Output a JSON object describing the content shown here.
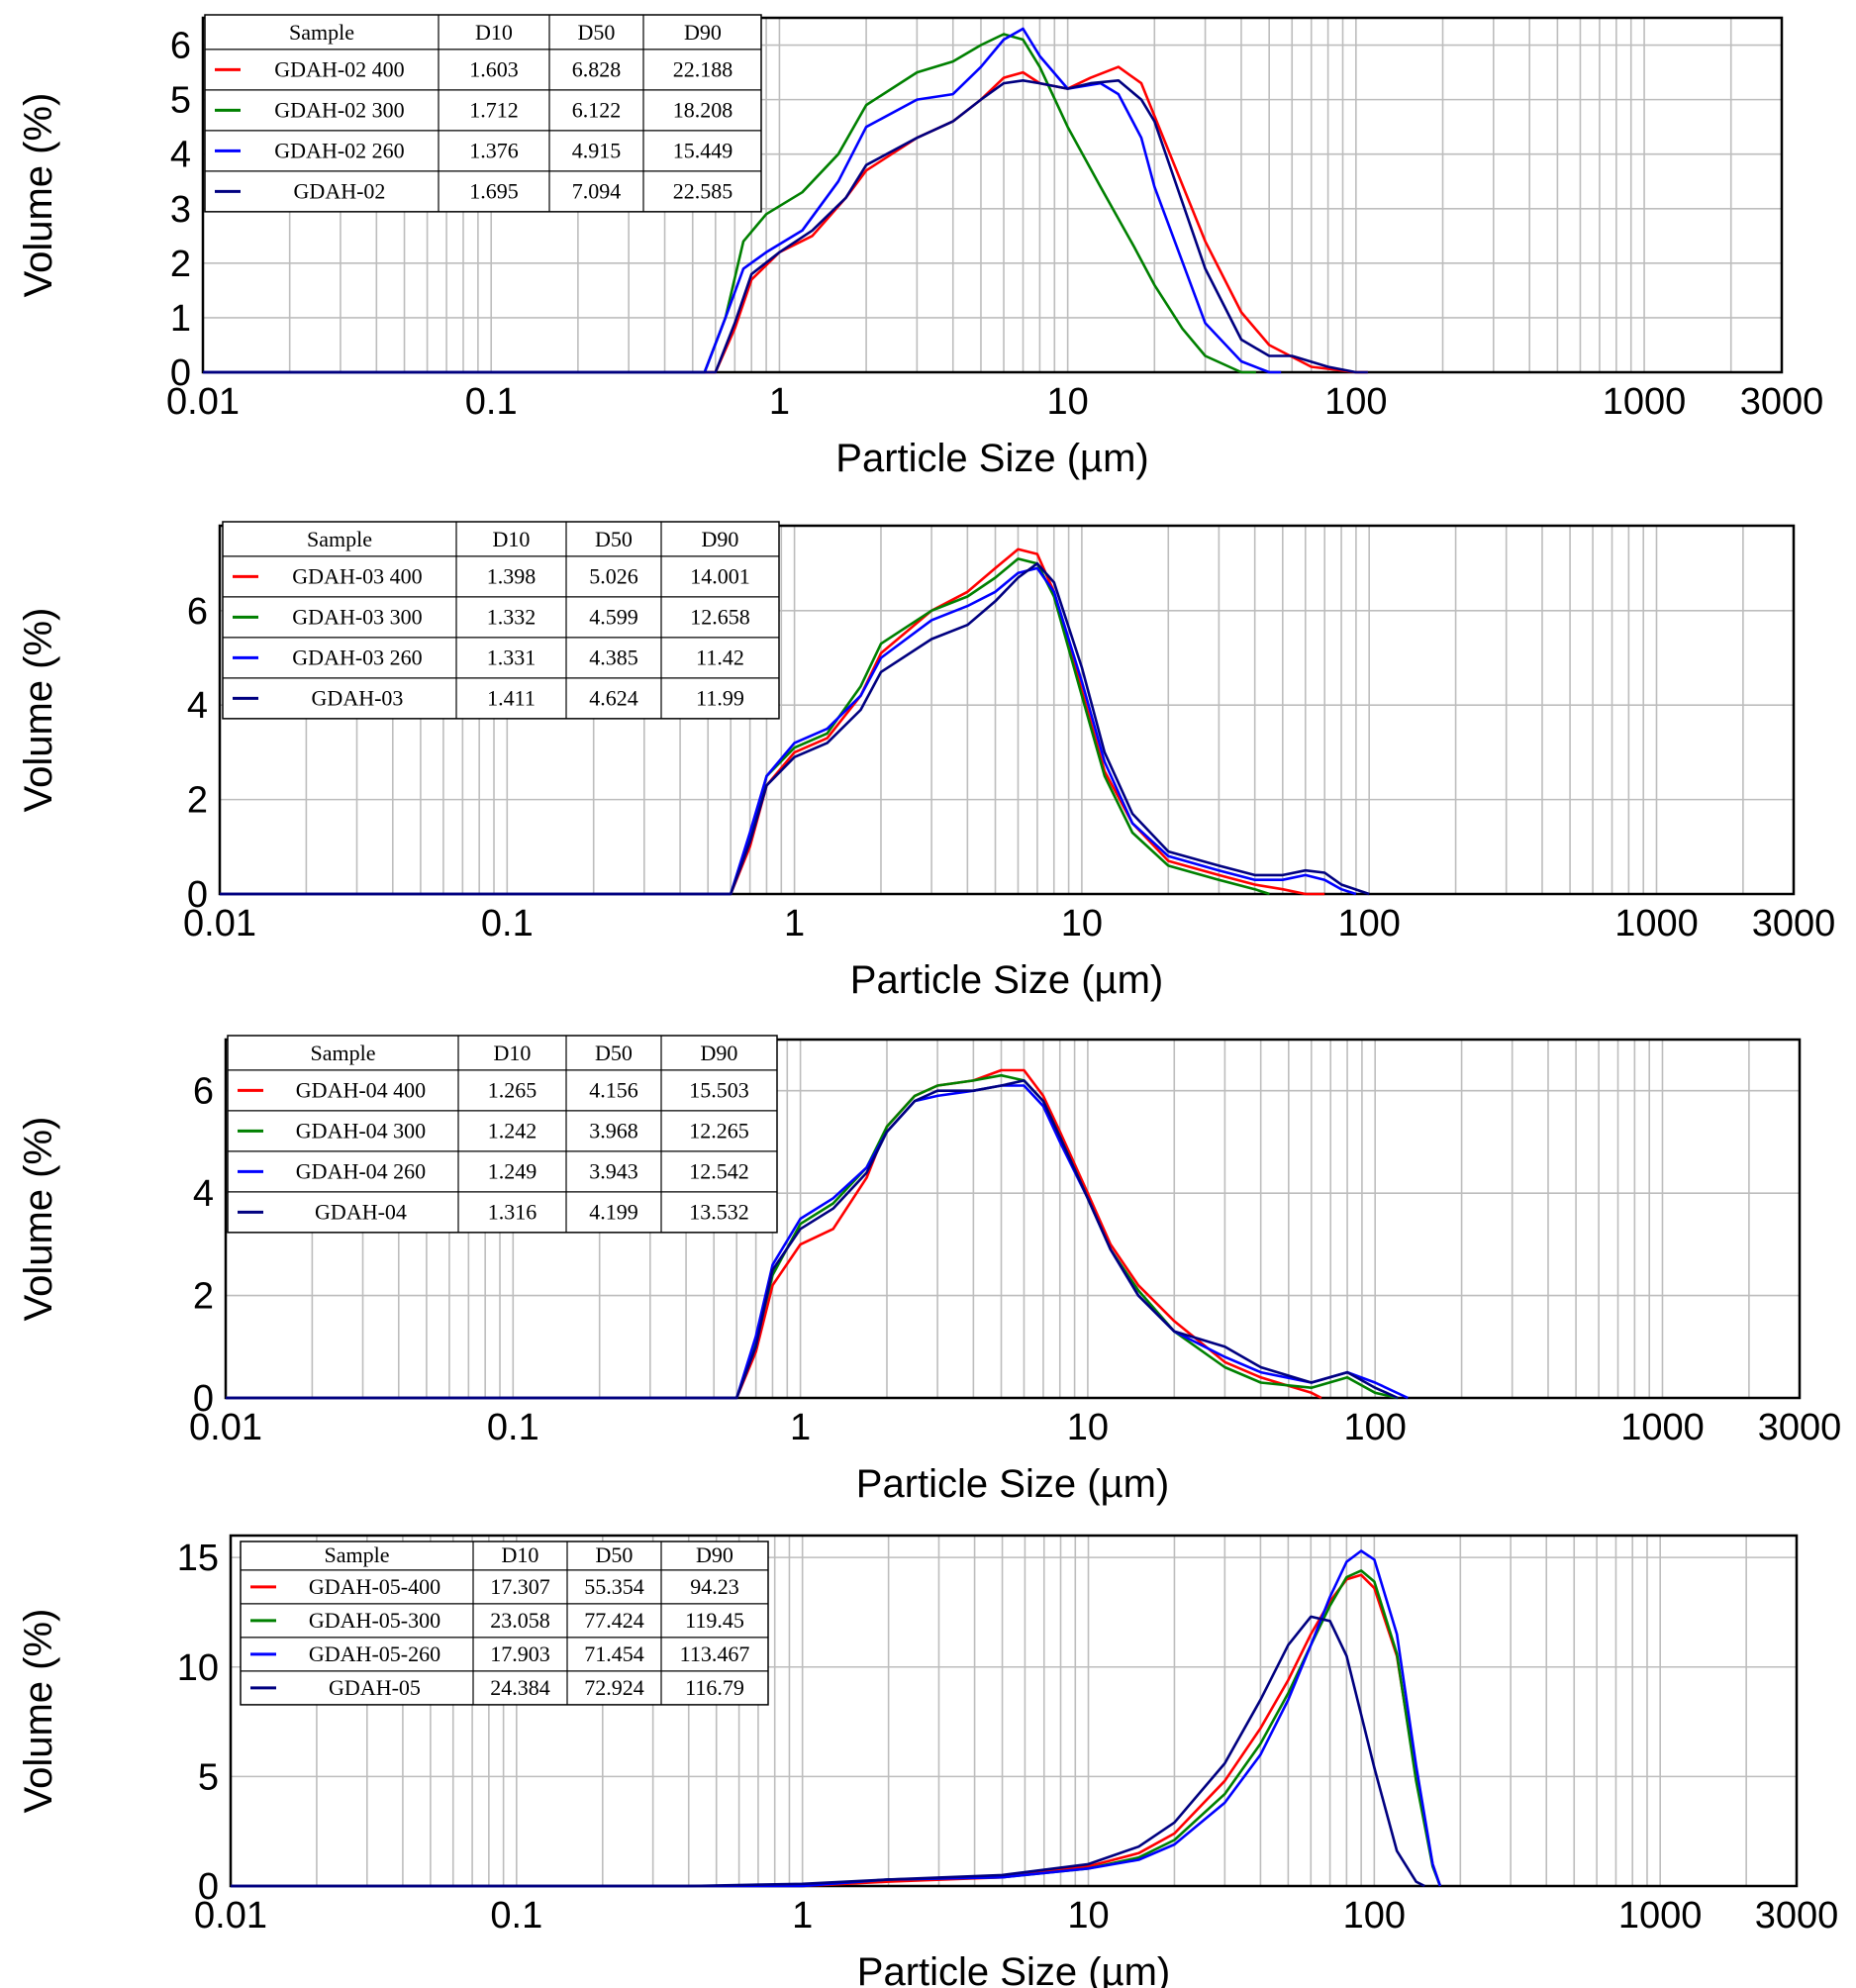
{
  "chart_data": [
    {
      "type": "line",
      "xlabel": "Particle Size (µm)",
      "ylabel": "Volume (%)",
      "xscale": "log",
      "xlim": [
        0.01,
        3000
      ],
      "ylim": [
        0,
        6.5
      ],
      "x_ticks": [
        "0.01",
        "0.1",
        "1",
        "10",
        "100",
        "1000",
        "3000"
      ],
      "y_ticks": [
        "0",
        "1",
        "2",
        "3",
        "4",
        "5",
        "6"
      ],
      "grid": true,
      "legend": {
        "position": "top-left",
        "headers": [
          "Sample",
          "D10",
          "D50",
          "D90"
        ],
        "rows": [
          {
            "sample": "GDAH-02 400",
            "d10": "1.603",
            "d50": "6.828",
            "d90": "22.188",
            "color": "#ff0000"
          },
          {
            "sample": "GDAH-02 300",
            "d10": "1.712",
            "d50": "6.122",
            "d90": "18.208",
            "color": "#008000"
          },
          {
            "sample": "GDAH-02 260",
            "d10": "1.376",
            "d50": "4.915",
            "d90": "15.449",
            "color": "#0000ff"
          },
          {
            "sample": "GDAH-02",
            "d10": "1.695",
            "d50": "7.094",
            "d90": "22.585",
            "color": "#000080"
          }
        ]
      },
      "series": [
        {
          "name": "GDAH-02 400",
          "color": "#ff0000",
          "x": [
            0.01,
            0.6,
            0.7,
            0.8,
            1,
            1.3,
            1.7,
            2,
            3,
            4,
            5,
            6,
            7,
            8,
            10,
            12,
            15,
            18,
            20,
            30,
            40,
            50,
            70,
            100,
            110
          ],
          "y": [
            0,
            0,
            0.8,
            1.7,
            2.2,
            2.5,
            3.2,
            3.7,
            4.3,
            4.6,
            5.0,
            5.4,
            5.5,
            5.3,
            5.2,
            5.4,
            5.6,
            5.3,
            4.7,
            2.4,
            1.1,
            0.5,
            0.1,
            0,
            0
          ]
        },
        {
          "name": "GDAH-02 300",
          "color": "#008000",
          "x": [
            0.01,
            0.55,
            0.65,
            0.75,
            0.9,
            1.2,
            1.6,
            2,
            3,
            4,
            5,
            6,
            7,
            8,
            10,
            13,
            17,
            20,
            25,
            30,
            40,
            45
          ],
          "y": [
            0,
            0,
            1.0,
            2.4,
            2.9,
            3.3,
            4.0,
            4.9,
            5.5,
            5.7,
            6.0,
            6.2,
            6.1,
            5.6,
            4.5,
            3.4,
            2.3,
            1.6,
            0.8,
            0.3,
            0,
            0
          ]
        },
        {
          "name": "GDAH-02 260",
          "color": "#0000ff",
          "x": [
            0.01,
            0.55,
            0.65,
            0.75,
            0.9,
            1.2,
            1.6,
            2,
            3,
            4,
            5,
            6,
            7,
            8,
            10,
            13,
            15,
            18,
            20,
            30,
            40,
            50,
            55
          ],
          "y": [
            0,
            0,
            1.0,
            1.9,
            2.2,
            2.6,
            3.5,
            4.5,
            5.0,
            5.1,
            5.6,
            6.1,
            6.3,
            5.8,
            5.2,
            5.3,
            5.1,
            4.3,
            3.4,
            0.9,
            0.2,
            0,
            0
          ]
        },
        {
          "name": "GDAH-02",
          "color": "#000080",
          "x": [
            0.01,
            0.6,
            0.7,
            0.8,
            1,
            1.3,
            1.7,
            2,
            3,
            4,
            5,
            6,
            7,
            8,
            10,
            12,
            15,
            18,
            20,
            30,
            40,
            50,
            60,
            80,
            100,
            110
          ],
          "y": [
            0,
            0,
            0.9,
            1.8,
            2.2,
            2.6,
            3.2,
            3.8,
            4.3,
            4.6,
            5.0,
            5.3,
            5.35,
            5.3,
            5.2,
            5.3,
            5.35,
            5.0,
            4.6,
            1.9,
            0.6,
            0.3,
            0.3,
            0.1,
            0,
            0
          ]
        }
      ]
    },
    {
      "type": "line",
      "xlabel": "Particle Size (µm)",
      "ylabel": "Volume (%)",
      "xscale": "log",
      "xlim": [
        0.01,
        3000
      ],
      "ylim": [
        0,
        7.8
      ],
      "x_ticks": [
        "0.01",
        "0.1",
        "1",
        "10",
        "100",
        "1000",
        "3000"
      ],
      "y_ticks": [
        "0",
        "2",
        "4",
        "6"
      ],
      "grid": true,
      "legend": {
        "position": "top-left",
        "headers": [
          "Sample",
          "D10",
          "D50",
          "D90"
        ],
        "rows": [
          {
            "sample": "GDAH-03 400",
            "d10": "1.398",
            "d50": "5.026",
            "d90": "14.001",
            "color": "#ff0000"
          },
          {
            "sample": "GDAH-03 300",
            "d10": "1.332",
            "d50": "4.599",
            "d90": "12.658",
            "color": "#008000"
          },
          {
            "sample": "GDAH-03 260",
            "d10": "1.331",
            "d50": "4.385",
            "d90": "11.42",
            "color": "#0000ff"
          },
          {
            "sample": "GDAH-03",
            "d10": "1.411",
            "d50": "4.624",
            "d90": "11.99",
            "color": "#000080"
          }
        ]
      },
      "series": [
        {
          "name": "GDAH-03 400",
          "color": "#ff0000",
          "x": [
            0.01,
            0.6,
            0.7,
            0.8,
            1,
            1.3,
            1.7,
            2,
            3,
            4,
            5,
            6,
            7,
            8,
            10,
            12,
            15,
            20,
            30,
            40,
            50,
            60,
            70
          ],
          "y": [
            0,
            0,
            1.0,
            2.3,
            3.0,
            3.3,
            4.2,
            5.1,
            6.0,
            6.4,
            6.9,
            7.3,
            7.2,
            6.4,
            4.3,
            2.6,
            1.5,
            0.7,
            0.4,
            0.2,
            0.1,
            0,
            0
          ]
        },
        {
          "name": "GDAH-03 300",
          "color": "#008000",
          "x": [
            0.01,
            0.6,
            0.7,
            0.8,
            1,
            1.3,
            1.7,
            2,
            3,
            4,
            5,
            6,
            7,
            8,
            10,
            12,
            15,
            20,
            30,
            40,
            45
          ],
          "y": [
            0,
            0,
            1.2,
            2.5,
            3.1,
            3.4,
            4.4,
            5.3,
            6.0,
            6.3,
            6.7,
            7.1,
            7.0,
            6.3,
            4.2,
            2.5,
            1.3,
            0.6,
            0.3,
            0.1,
            0
          ]
        },
        {
          "name": "GDAH-03 260",
          "color": "#0000ff",
          "x": [
            0.01,
            0.6,
            0.7,
            0.8,
            1,
            1.3,
            1.7,
            2,
            3,
            4,
            5,
            6,
            7,
            8,
            10,
            12,
            15,
            20,
            30,
            40,
            50,
            60,
            70,
            80,
            90
          ],
          "y": [
            0,
            0,
            1.3,
            2.5,
            3.2,
            3.5,
            4.2,
            5.0,
            5.8,
            6.1,
            6.4,
            6.8,
            6.9,
            6.4,
            4.5,
            2.8,
            1.5,
            0.8,
            0.5,
            0.3,
            0.3,
            0.4,
            0.3,
            0.1,
            0
          ]
        },
        {
          "name": "GDAH-03",
          "color": "#000080",
          "x": [
            0.01,
            0.6,
            0.7,
            0.8,
            1,
            1.3,
            1.7,
            2,
            3,
            4,
            5,
            6,
            7,
            8,
            10,
            12,
            15,
            20,
            30,
            40,
            50,
            60,
            70,
            80,
            100
          ],
          "y": [
            0,
            0,
            1.1,
            2.3,
            2.9,
            3.2,
            3.9,
            4.7,
            5.4,
            5.7,
            6.2,
            6.7,
            7.0,
            6.6,
            4.8,
            3.0,
            1.7,
            0.9,
            0.6,
            0.4,
            0.4,
            0.5,
            0.45,
            0.2,
            0
          ]
        }
      ]
    },
    {
      "type": "line",
      "xlabel": "Particle Size (µm)",
      "ylabel": "Volume (%)",
      "xscale": "log",
      "xlim": [
        0.01,
        3000
      ],
      "ylim": [
        0,
        7
      ],
      "x_ticks": [
        "0.01",
        "0.1",
        "1",
        "10",
        "100",
        "1000",
        "3000"
      ],
      "y_ticks": [
        "0",
        "2",
        "4",
        "6"
      ],
      "grid": true,
      "legend": {
        "position": "top-left",
        "headers": [
          "Sample",
          "D10",
          "D50",
          "D90"
        ],
        "rows": [
          {
            "sample": "GDAH-04 400",
            "d10": "1.265",
            "d50": "4.156",
            "d90": "15.503",
            "color": "#ff0000"
          },
          {
            "sample": "GDAH-04 300",
            "d10": "1.242",
            "d50": "3.968",
            "d90": "12.265",
            "color": "#008000"
          },
          {
            "sample": "GDAH-04 260",
            "d10": "1.249",
            "d50": "3.943",
            "d90": "12.542",
            "color": "#0000ff"
          },
          {
            "sample": "GDAH-04",
            "d10": "1.316",
            "d50": "4.199",
            "d90": "13.532",
            "color": "#000080"
          }
        ]
      },
      "series": [
        {
          "name": "GDAH-04 400",
          "color": "#ff0000",
          "x": [
            0.01,
            0.6,
            0.7,
            0.8,
            1,
            1.3,
            1.7,
            2,
            2.5,
            3,
            4,
            5,
            6,
            7,
            8,
            10,
            12,
            15,
            20,
            30,
            40,
            60,
            65
          ],
          "y": [
            0,
            0,
            0.9,
            2.2,
            3.0,
            3.3,
            4.3,
            5.3,
            5.9,
            6.1,
            6.2,
            6.4,
            6.4,
            5.9,
            5.2,
            4.0,
            3.0,
            2.2,
            1.5,
            0.7,
            0.4,
            0.1,
            0
          ]
        },
        {
          "name": "GDAH-04 300",
          "color": "#008000",
          "x": [
            0.01,
            0.6,
            0.7,
            0.8,
            1,
            1.3,
            1.7,
            2,
            2.5,
            3,
            4,
            5,
            6,
            7,
            8,
            10,
            12,
            15,
            20,
            30,
            40,
            60,
            80,
            100,
            120
          ],
          "y": [
            0,
            0,
            1.1,
            2.4,
            3.4,
            3.8,
            4.5,
            5.3,
            5.9,
            6.1,
            6.2,
            6.3,
            6.2,
            5.8,
            5.1,
            3.9,
            2.9,
            2.1,
            1.3,
            0.6,
            0.3,
            0.2,
            0.4,
            0.1,
            0
          ]
        },
        {
          "name": "GDAH-04 260",
          "color": "#0000ff",
          "x": [
            0.01,
            0.6,
            0.7,
            0.8,
            1,
            1.3,
            1.7,
            2,
            2.5,
            3,
            4,
            5,
            6,
            7,
            8,
            10,
            12,
            15,
            20,
            30,
            40,
            60,
            80,
            100,
            130
          ],
          "y": [
            0,
            0,
            1.2,
            2.6,
            3.5,
            3.9,
            4.5,
            5.2,
            5.8,
            5.9,
            6.0,
            6.1,
            6.1,
            5.7,
            5.0,
            3.9,
            2.9,
            2.0,
            1.3,
            0.8,
            0.5,
            0.3,
            0.5,
            0.3,
            0
          ]
        },
        {
          "name": "GDAH-04",
          "color": "#000080",
          "x": [
            0.01,
            0.6,
            0.7,
            0.8,
            1,
            1.3,
            1.7,
            2,
            2.5,
            3,
            4,
            5,
            6,
            7,
            8,
            10,
            12,
            15,
            20,
            30,
            40,
            60,
            80,
            100,
            120
          ],
          "y": [
            0,
            0,
            1.0,
            2.5,
            3.3,
            3.7,
            4.4,
            5.2,
            5.8,
            6.0,
            6.0,
            6.1,
            6.2,
            5.8,
            5.1,
            3.9,
            2.9,
            2.0,
            1.3,
            1.0,
            0.6,
            0.3,
            0.5,
            0.2,
            0
          ]
        }
      ]
    },
    {
      "type": "line",
      "xlabel": "Particle Size (µm)",
      "ylabel": "Volume (%)",
      "xscale": "log",
      "xlim": [
        0.01,
        3000
      ],
      "ylim": [
        0,
        16
      ],
      "x_ticks": [
        "0.01",
        "0.1",
        "1",
        "10",
        "100",
        "1000",
        "3000"
      ],
      "y_ticks": [
        "0",
        "5",
        "10",
        "15"
      ],
      "grid": true,
      "legend": {
        "position": "top-left",
        "headers": [
          "Sample",
          "D10",
          "D50",
          "D90"
        ],
        "rows": [
          {
            "sample": "GDAH-05-400",
            "d10": "17.307",
            "d50": "55.354",
            "d90": "94.23",
            "color": "#ff0000"
          },
          {
            "sample": "GDAH-05-300",
            "d10": "23.058",
            "d50": "77.424",
            "d90": "119.45",
            "color": "#008000"
          },
          {
            "sample": "GDAH-05-260",
            "d10": "17.903",
            "d50": "71.454",
            "d90": "113.467",
            "color": "#0000ff"
          },
          {
            "sample": "GDAH-05",
            "d10": "24.384",
            "d50": "72.924",
            "d90": "116.79",
            "color": "#000080"
          }
        ]
      },
      "series": [
        {
          "name": "GDAH-05-400",
          "color": "#ff0000",
          "x": [
            0.01,
            1,
            2,
            5,
            10,
            15,
            20,
            30,
            40,
            50,
            60,
            70,
            80,
            90,
            100,
            120,
            140,
            160,
            170
          ],
          "y": [
            0,
            0,
            0.2,
            0.4,
            0.9,
            1.5,
            2.4,
            4.8,
            7.2,
            9.4,
            11.5,
            13.0,
            14.0,
            14.2,
            13.6,
            10.5,
            5.0,
            1.0,
            0
          ]
        },
        {
          "name": "GDAH-05-300",
          "color": "#008000",
          "x": [
            0.01,
            1,
            2,
            5,
            10,
            15,
            20,
            30,
            40,
            50,
            60,
            70,
            80,
            90,
            100,
            120,
            140,
            160,
            170
          ],
          "y": [
            0,
            0,
            0.3,
            0.4,
            0.8,
            1.3,
            2.1,
            4.2,
            6.5,
            8.8,
            11.0,
            12.8,
            14.1,
            14.4,
            13.9,
            10.6,
            4.8,
            0.9,
            0
          ]
        },
        {
          "name": "GDAH-05-260",
          "color": "#0000ff",
          "x": [
            0.01,
            1,
            2,
            5,
            10,
            15,
            20,
            30,
            40,
            50,
            60,
            70,
            80,
            90,
            100,
            120,
            140,
            160,
            170
          ],
          "y": [
            0,
            0,
            0.3,
            0.4,
            0.8,
            1.2,
            1.9,
            3.8,
            6.0,
            8.5,
            11.0,
            13.2,
            14.8,
            15.3,
            14.9,
            11.5,
            5.5,
            1.0,
            0
          ]
        },
        {
          "name": "GDAH-05",
          "color": "#000080",
          "x": [
            0.01,
            0.4,
            1,
            2,
            5,
            10,
            15,
            20,
            30,
            40,
            50,
            60,
            70,
            80,
            100,
            120,
            140,
            150
          ],
          "y": [
            0,
            0,
            0.1,
            0.3,
            0.5,
            1.0,
            1.8,
            2.9,
            5.6,
            8.5,
            11.0,
            12.3,
            12.1,
            10.5,
            5.4,
            1.6,
            0.2,
            0
          ]
        }
      ]
    }
  ]
}
